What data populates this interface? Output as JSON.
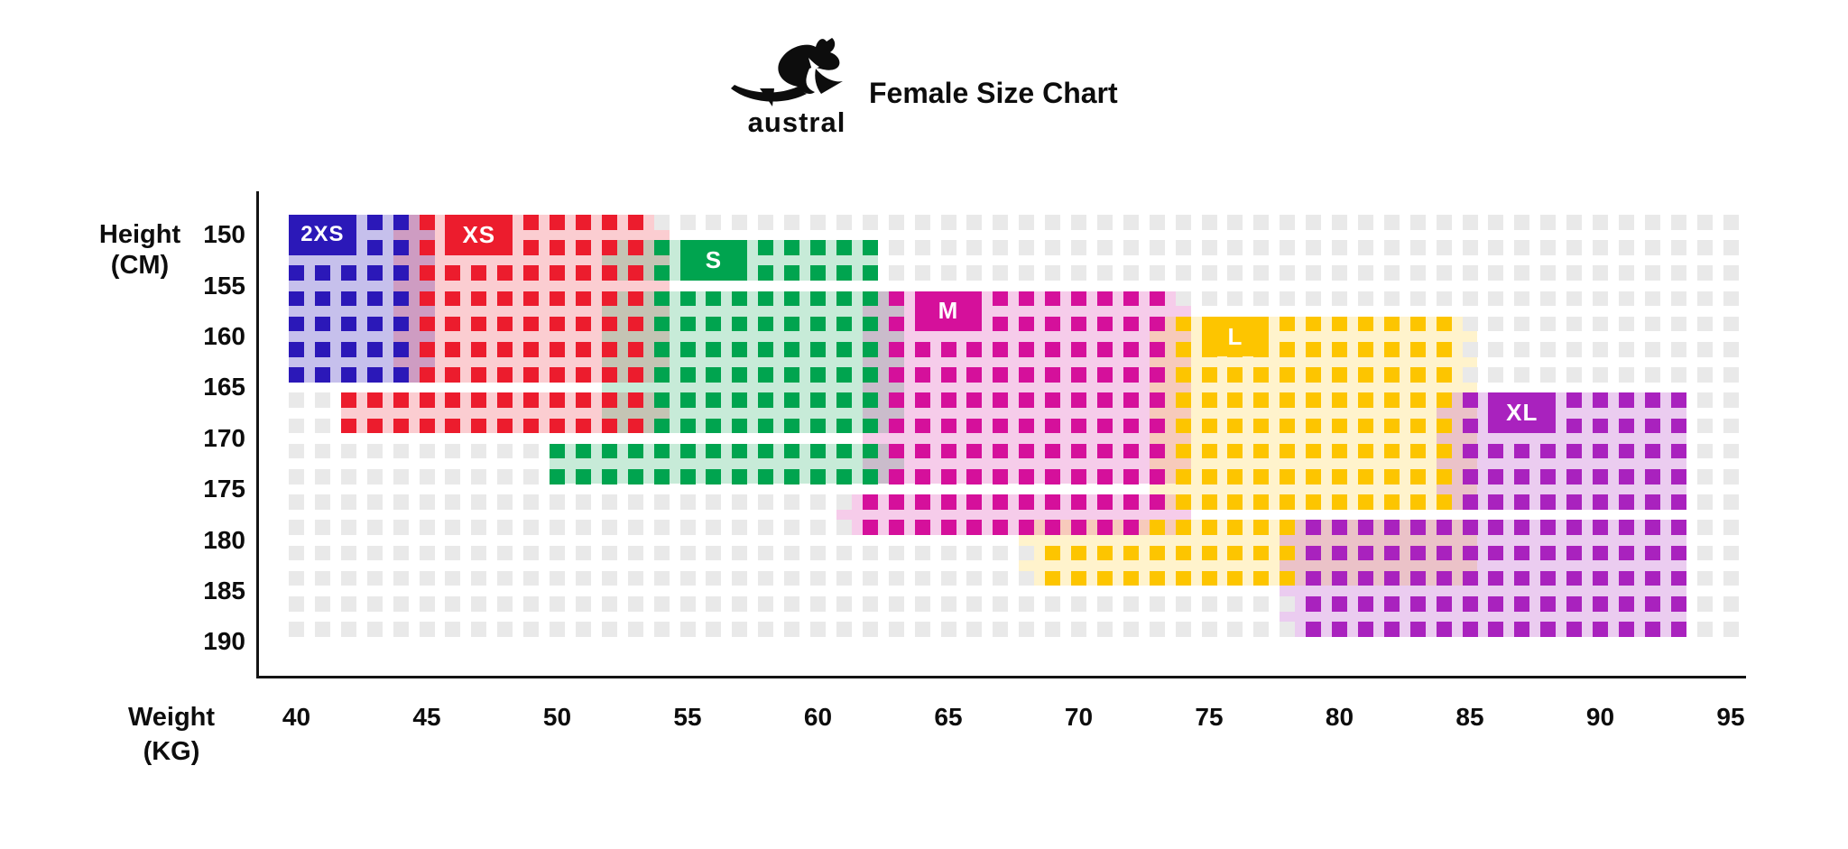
{
  "header": {
    "title": "Female Size Chart",
    "logo": {
      "wordmark": "austral",
      "icon": "kangaroo-icon"
    }
  },
  "chart_data": {
    "type": "heatmap",
    "title": "Female Size Chart",
    "xlabel": "Weight (KG)",
    "ylabel": "Height (CM)",
    "x_axis": {
      "title_lines": [
        "Weight",
        "(KG)"
      ],
      "ticks": [
        40,
        45,
        50,
        55,
        60,
        65,
        70,
        75,
        80,
        85,
        90,
        95
      ],
      "unit": "kg",
      "range": [
        40,
        95
      ]
    },
    "y_axis": {
      "title_lines": [
        "Height",
        "(CM)"
      ],
      "ticks": [
        150,
        155,
        160,
        165,
        170,
        175,
        180,
        185,
        190
      ],
      "unit": "cm",
      "range": [
        150,
        190
      ]
    },
    "grid": {
      "columns": 56,
      "rows": 17,
      "weight_min_kg": 40,
      "weight_max_kg": 95,
      "empty_cell_color": "#E9E9E9"
    },
    "sizes": [
      {
        "id": "2xs",
        "label": "2XS",
        "color": "#2B18B8",
        "tint": "rgba(43,24,184,0.27)",
        "weight_range_kg": [
          40,
          45
        ],
        "height_range_cm": [
          150,
          165
        ],
        "label_box": {
          "r": [
            1,
            2
          ],
          "c": [
            40,
            42
          ]
        },
        "label_font": 24,
        "squares": [
          {
            "r": [
              1,
              7
            ],
            "c": [
              40,
              44
            ]
          }
        ],
        "tint_spans": [
          {
            "r": [
              1,
              7
            ],
            "c": [
              40,
              45
            ]
          }
        ]
      },
      {
        "id": "xs",
        "label": "XS",
        "color": "#EC1C2D",
        "tint": "rgba(236,28,45,0.22)",
        "weight_range_kg": [
          42,
          54
        ],
        "height_range_cm": [
          150,
          170
        ],
        "label_box": {
          "r": [
            1,
            2
          ],
          "c": [
            46,
            48
          ]
        },
        "label_font": 26,
        "squares": [
          {
            "r": [
              1,
              7
            ],
            "c": [
              45,
              53
            ]
          },
          {
            "r": [
              8,
              9
            ],
            "c": [
              42,
              53
            ]
          }
        ],
        "tint_spans": [
          {
            "r": [
              1,
              7
            ],
            "c": [
              44,
              54
            ]
          },
          {
            "r": [
              8,
              9
            ],
            "c": [
              42,
              54
            ]
          }
        ]
      },
      {
        "id": "s",
        "label": "S",
        "color": "#00A44F",
        "tint": "rgba(0,164,79,0.22)",
        "weight_range_kg": [
          50,
          63
        ],
        "height_range_cm": [
          152,
          173
        ],
        "label_box": {
          "r": [
            2,
            3
          ],
          "c": [
            55,
            57
          ]
        },
        "label_font": 26,
        "squares": [
          {
            "r": [
              2,
              9
            ],
            "c": [
              54,
              62
            ]
          },
          {
            "r": [
              10,
              11
            ],
            "c": [
              50,
              62
            ]
          }
        ],
        "tint_spans": [
          {
            "r": [
              2,
              3
            ],
            "c": [
              52,
              62
            ]
          },
          {
            "r": [
              4,
              9
            ],
            "c": [
              52,
              63
            ]
          },
          {
            "r": [
              10,
              11
            ],
            "c": [
              50,
              63
            ]
          }
        ]
      },
      {
        "id": "m",
        "label": "M",
        "color": "#D5109B",
        "tint": "rgba(213,16,155,0.21)",
        "weight_range_kg": [
          61,
          74
        ],
        "height_range_cm": [
          157,
          180
        ],
        "label_box": {
          "r": [
            4,
            5
          ],
          "c": [
            64,
            66
          ]
        },
        "label_font": 26,
        "squares": [
          {
            "r": [
              4,
              11
            ],
            "c": [
              63,
              73
            ]
          },
          {
            "r": [
              12,
              12
            ],
            "c": [
              62,
              73
            ]
          },
          {
            "r": [
              13,
              13
            ],
            "c": [
              62,
              72
            ]
          }
        ],
        "tint_spans": [
          {
            "r": [
              4,
              11
            ],
            "c": [
              62,
              74
            ]
          },
          {
            "r": [
              12,
              13
            ],
            "c": [
              61,
              74
            ]
          }
        ]
      },
      {
        "id": "l",
        "label": "L",
        "color": "#FDC500",
        "tint": "rgba(253,197,0,0.20)",
        "weight_range_kg": [
          68,
          85
        ],
        "height_range_cm": [
          160,
          186
        ],
        "label_box": {
          "r": [
            5,
            6
          ],
          "c": [
            75,
            77
          ]
        },
        "label_font": 26,
        "squares": [
          {
            "r": [
              5,
              12
            ],
            "c": [
              74,
              84
            ]
          },
          {
            "r": [
              13,
              13
            ],
            "c": [
              73,
              78
            ]
          },
          {
            "r": [
              14,
              15
            ],
            "c": [
              69,
              78
            ]
          }
        ],
        "tint_spans": [
          {
            "r": [
              5,
              12
            ],
            "c": [
              73,
              85
            ]
          },
          {
            "r": [
              13,
              15
            ],
            "c": [
              68,
              85
            ]
          }
        ]
      },
      {
        "id": "xl",
        "label": "XL",
        "color": "#A922BE",
        "tint": "rgba(169,34,190,0.23)",
        "weight_range_kg": [
          78,
          93
        ],
        "height_range_cm": [
          167,
          190
        ],
        "label_box": {
          "r": [
            8,
            9
          ],
          "c": [
            86,
            88
          ]
        },
        "label_font": 26,
        "squares": [
          {
            "r": [
              8,
              12
            ],
            "c": [
              85,
              93
            ]
          },
          {
            "r": [
              13,
              17
            ],
            "c": [
              79,
              93
            ]
          }
        ],
        "tint_spans": [
          {
            "r": [
              8,
              12
            ],
            "c": [
              84,
              93
            ]
          },
          {
            "r": [
              13,
              17
            ],
            "c": [
              78,
              93
            ]
          }
        ]
      }
    ]
  }
}
